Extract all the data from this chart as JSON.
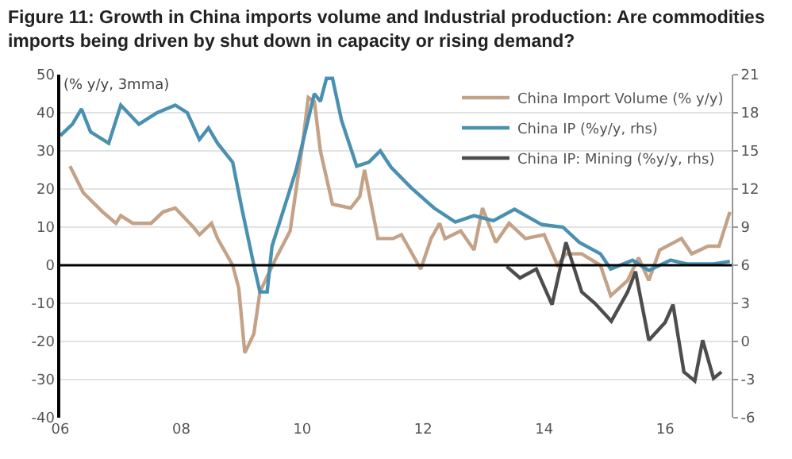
{
  "chart_data": {
    "type": "line",
    "title": "Figure 11: Growth in China imports volume and Industrial production: Are commodities imports being driven by shut down in capacity or rising demand?",
    "ylabel": "(% y/y, 3mma)",
    "xlim": [
      2006,
      2017.1
    ],
    "xticks": [
      {
        "value": 2006,
        "label": "06"
      },
      {
        "value": 2008,
        "label": "08"
      },
      {
        "value": 2010,
        "label": "10"
      },
      {
        "value": 2012,
        "label": "12"
      },
      {
        "value": 2014,
        "label": "14"
      },
      {
        "value": 2016,
        "label": "16"
      }
    ],
    "ylim": [
      -40,
      50
    ],
    "yticks": [
      -40,
      -30,
      -20,
      -10,
      0,
      10,
      20,
      30,
      40,
      50
    ],
    "y2lim": [
      -6,
      21
    ],
    "y2ticks": [
      -6,
      -3,
      0,
      3,
      6,
      9,
      12,
      15,
      18,
      21
    ],
    "grid": "y",
    "legend": "top right",
    "line_style": "solid",
    "marker": "none",
    "ref_lines": [
      {
        "axis": "y",
        "value": 0,
        "color": "#000000"
      }
    ],
    "series": [
      {
        "name": "China Import Volume (% y/y)",
        "color": "#c4a287",
        "x": [
          2006.16,
          2006.38,
          2006.7,
          2006.92,
          2007.0,
          2007.2,
          2007.5,
          2007.7,
          2007.9,
          2008.2,
          2008.3,
          2008.5,
          2008.6,
          2008.85,
          2008.95,
          2009.05,
          2009.2,
          2009.3,
          2009.57,
          2009.8,
          2010.0,
          2010.1,
          2010.2,
          2010.3,
          2010.5,
          2010.8,
          2010.95,
          2011.03,
          2011.25,
          2011.5,
          2011.64,
          2011.96,
          2012.13,
          2012.27,
          2012.36,
          2012.62,
          2012.84,
          2012.98,
          2013.2,
          2013.42,
          2013.69,
          2014.0,
          2014.22,
          2014.36,
          2014.62,
          2014.93,
          2015.1,
          2015.38,
          2015.56,
          2015.73,
          2015.91,
          2016.27,
          2016.44,
          2016.71,
          2016.89,
          2017.07
        ],
        "values": [
          26,
          19,
          14,
          11,
          13,
          11,
          11,
          14,
          15,
          10,
          8,
          11,
          7,
          0,
          -6,
          -23,
          -18,
          -7,
          2,
          9,
          31,
          44,
          43,
          30,
          16,
          15,
          18,
          25,
          7,
          7,
          8,
          -1,
          7,
          11,
          7,
          9,
          4,
          15,
          6,
          11,
          7,
          8,
          0,
          3,
          3,
          0,
          -8,
          -4,
          2,
          -4,
          4,
          7,
          3,
          5,
          5,
          14
        ]
      },
      {
        "name": "China IP (%y/y, rhs)",
        "color": "#4a90b0",
        "axis": "y2",
        "x": [
          2006.0,
          2006.2,
          2006.35,
          2006.5,
          2006.8,
          2007.0,
          2007.3,
          2007.6,
          2007.9,
          2008.1,
          2008.3,
          2008.45,
          2008.6,
          2008.85,
          2009.0,
          2009.2,
          2009.3,
          2009.42,
          2009.5,
          2009.7,
          2009.9,
          2010.2,
          2010.3,
          2010.4,
          2010.5,
          2010.65,
          2010.9,
          2011.1,
          2011.29,
          2011.47,
          2011.8,
          2012.18,
          2012.53,
          2012.84,
          2013.16,
          2013.51,
          2013.96,
          2014.31,
          2014.58,
          2014.93,
          2015.1,
          2015.46,
          2015.73,
          2016.09,
          2016.36,
          2016.8,
          2017.07
        ],
        "values": [
          16.2,
          17.1,
          18.3,
          16.5,
          15.6,
          18.6,
          17.1,
          18,
          18.6,
          18,
          15.9,
          16.8,
          15.6,
          14.1,
          10.5,
          6,
          3.9,
          3.9,
          7.5,
          10.5,
          13.5,
          19.5,
          18.9,
          20.7,
          20.7,
          17.4,
          13.8,
          14.1,
          15,
          13.7,
          12.1,
          10.5,
          9.4,
          9.9,
          9.5,
          10.4,
          9.2,
          9,
          7.8,
          6.9,
          5.7,
          6.4,
          5.6,
          6.4,
          6.1,
          6.1,
          6.3
        ]
      },
      {
        "name": "China IP: Mining (%y/y, rhs)",
        "color": "#4d4d4d",
        "axis": "y2",
        "x": [
          2013.38,
          2013.6,
          2013.87,
          2014.13,
          2014.36,
          2014.62,
          2014.84,
          2015.11,
          2015.38,
          2015.51,
          2015.73,
          2016.0,
          2016.13,
          2016.31,
          2016.49,
          2016.62,
          2016.8,
          2016.93
        ],
        "values": [
          5.9,
          5,
          5.7,
          2.9,
          7.8,
          3.9,
          3,
          1.6,
          3.9,
          5.5,
          0.1,
          1.5,
          2.9,
          -2.4,
          -3.1,
          0.1,
          -2.9,
          -2.4
        ]
      }
    ]
  }
}
